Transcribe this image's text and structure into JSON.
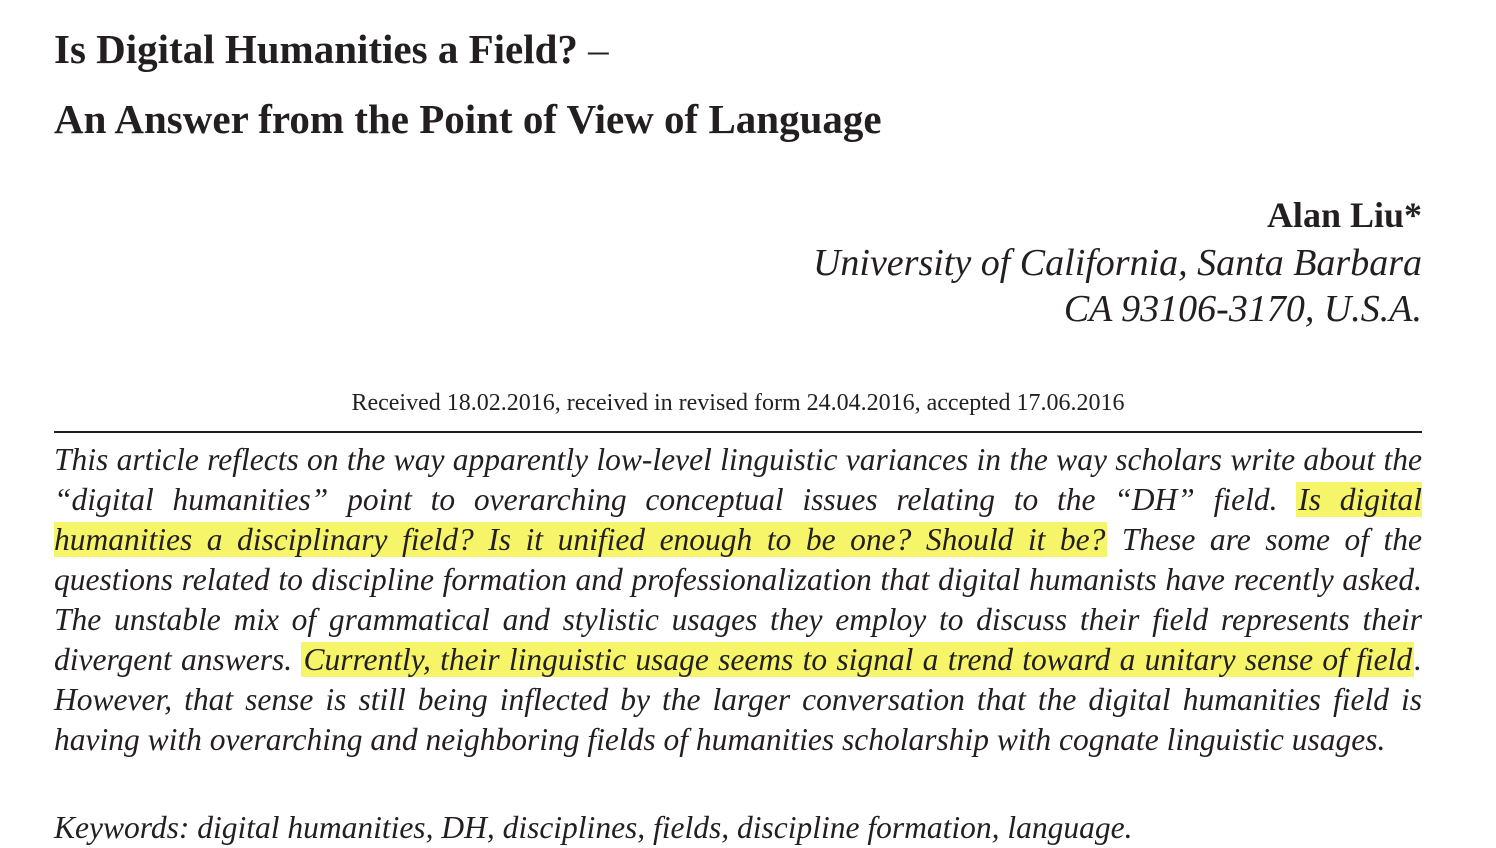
{
  "title": {
    "line1": "Is Digital Humanities a Field?",
    "dash": "–",
    "line2": "An Answer from the Point of View of Language"
  },
  "author": {
    "name": "Alan Liu*",
    "affiliation_line1": "University of California, Santa Barbara",
    "affiliation_line2": "CA 93106-3170, U.S.A."
  },
  "received": "Received 18.02.2016, received in revised form 24.04.2016, accepted 17.06.2016",
  "abstract": {
    "part1": "This article reflects on the way apparently low-level linguistic variances in the way scholars write about the “digital humanities” point to overarching conceptual issues relating to the “DH” field.",
    "highlight1": "Is digital humanities a disciplinary field? Is it unified enough to be one? Should it be?",
    "part2": "These are some of the questions related to discipline formation and professionalization that digital humanists have recently asked. The unstable mix of grammatical and stylistic usages they employ to discuss their field represents their divergent answers.",
    "highlight2": "Currently, their linguistic usage seems to signal a trend toward a unitary sense of field",
    "part3": ". However, that sense is still being inflected by the larger conversation that the digital humanities field is having with overarching and neighboring fields of humanities scholarship with cognate linguistic usages."
  },
  "next_line_partial": "Keywords: digital humanities, DH, disciplines, fields, discipline formation, language."
}
